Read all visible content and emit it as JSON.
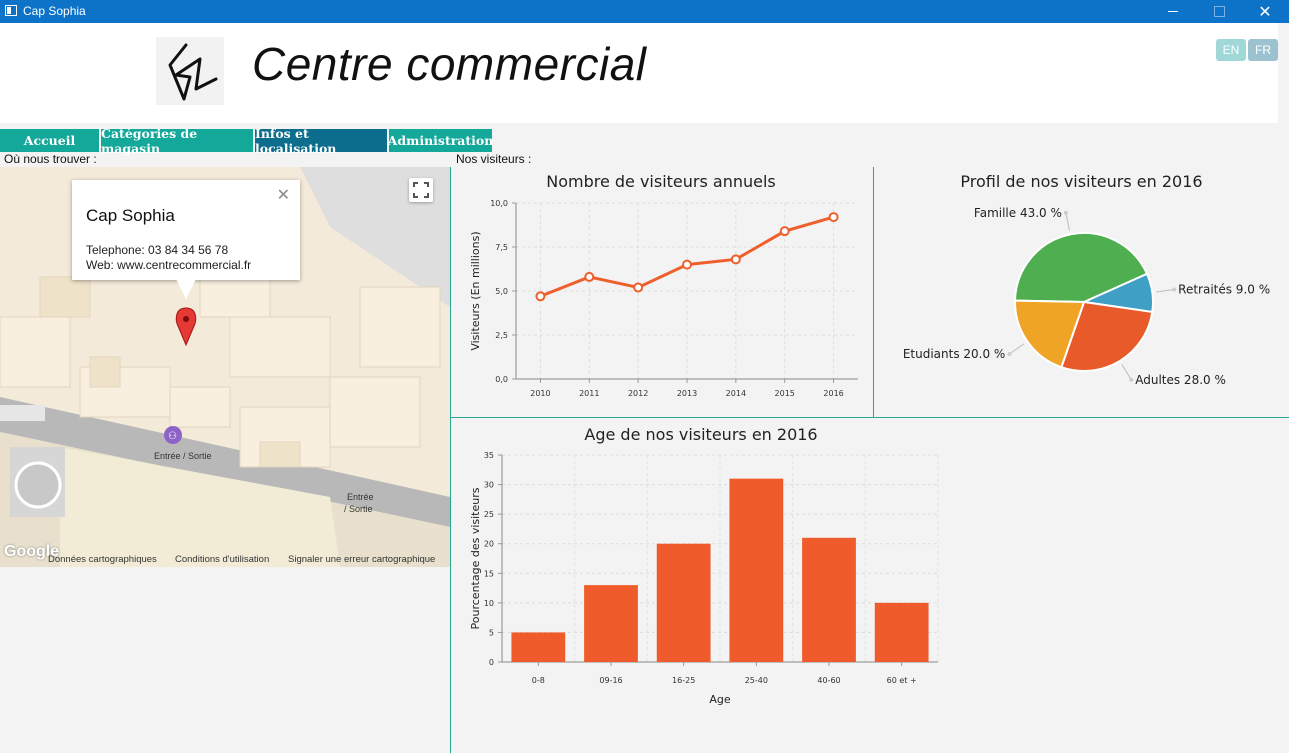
{
  "window": {
    "title": "Cap Sophia"
  },
  "header": {
    "brand": "Centre commercial",
    "lang_en": "EN",
    "lang_fr": "FR"
  },
  "nav": {
    "tabs": [
      {
        "label": "Accueil"
      },
      {
        "label": "Catégories de magasin"
      },
      {
        "label": "Infos et localisation"
      },
      {
        "label": "Administration"
      }
    ]
  },
  "location": {
    "section_label": "Où nous trouver :",
    "info": {
      "name": "Cap Sophia",
      "phone": "Telephone: 03 84 34 56 78",
      "web": "Web: www.centrecommercial.fr"
    },
    "map_labels": {
      "entrance1": "Entrée / Sortie",
      "entrance2a": "Entrée",
      "entrance2b": "/ Sortie"
    },
    "logo": "Google",
    "footer": {
      "data": "Données cartographiques",
      "terms": "Conditions d'utilisation",
      "report": "Signaler une erreur cartographique"
    }
  },
  "visitors": {
    "section_label": "Nos visiteurs :"
  },
  "chart_data": [
    {
      "type": "line",
      "title": "Nombre de visiteurs annuels",
      "xlabel": "",
      "ylabel": "Visiteurs (En millions)",
      "x": [
        "2010",
        "2011",
        "2012",
        "2013",
        "2014",
        "2015",
        "2016"
      ],
      "values": [
        4.7,
        5.8,
        5.2,
        6.5,
        6.8,
        8.4,
        9.2
      ],
      "ylim": [
        0,
        10
      ],
      "yticks": [
        "0,0",
        "2,5",
        "5,0",
        "7,5",
        "10,0"
      ],
      "color": "#ee5f2c",
      "grid": true
    },
    {
      "type": "pie",
      "title": "Profil de nos visiteurs en 2016",
      "slices": [
        {
          "label": "Famille 43.0 %",
          "value": 43.0,
          "color": "#4fae4f"
        },
        {
          "label": "Retraités 9.0 %",
          "value": 9.0,
          "color": "#3f9fc4"
        },
        {
          "label": "Adultes 28.0 %",
          "value": 28.0,
          "color": "#e85a2a"
        },
        {
          "label": "Etudiants 20.0 %",
          "value": 20.0,
          "color": "#f0a425"
        }
      ]
    },
    {
      "type": "bar",
      "title": "Age de nos visiteurs en 2016",
      "xlabel": "Age",
      "ylabel": "Pourcentage des visiteurs",
      "categories": [
        "0-8",
        "09-16",
        "16-25",
        "25-40",
        "40-60",
        "60 et +"
      ],
      "values": [
        5,
        13,
        20,
        31,
        21,
        10
      ],
      "ylim": [
        0,
        35
      ],
      "yticks": [
        "0",
        "5",
        "10",
        "15",
        "20",
        "25",
        "30",
        "35"
      ],
      "color": "#f05b2b",
      "grid": true
    }
  ]
}
